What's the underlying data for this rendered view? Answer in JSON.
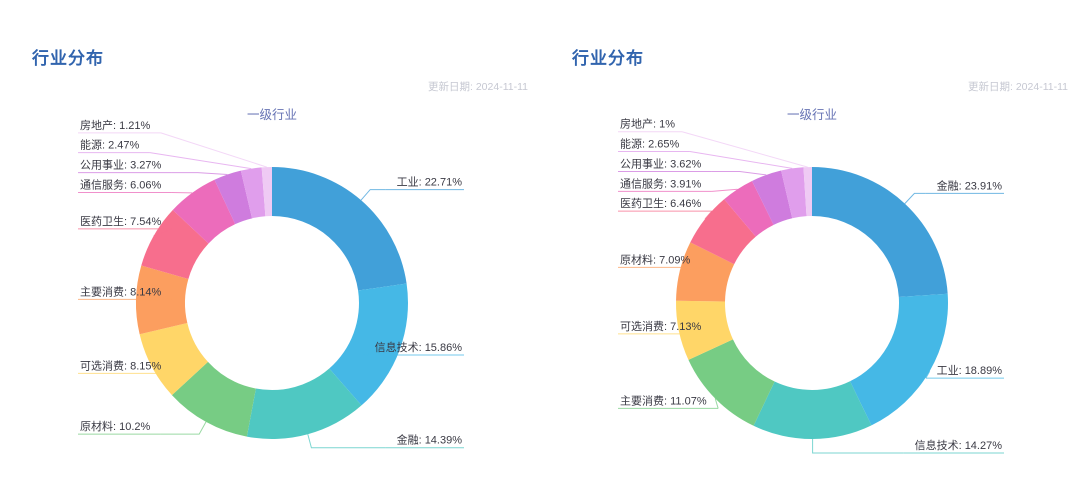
{
  "palette": [
    "#41A0D9",
    "#45B8E6",
    "#4FC8C2",
    "#77CC84",
    "#FFD668",
    "#FC9E5F",
    "#F76E8D",
    "#EC6CBB",
    "#CF7CDE",
    "#E09EEC",
    "#EFCAF4"
  ],
  "colors": {
    "title": "#3164AE",
    "subtitle": "#6673B4",
    "update_date": "#C6C8D2",
    "label_text": "#3A3A44",
    "background": "#FFFFFF"
  },
  "chart_data": [
    {
      "type": "pie",
      "donut": true,
      "title": "行业分布",
      "update_date": "更新日期: 2024-11-11",
      "subtitle": "一级行业",
      "unit": "%",
      "start_angle_deg": 90,
      "clockwise": true,
      "legend_position": "none",
      "categories": [
        "工业",
        "信息技术",
        "金融",
        "原材料",
        "可选消费",
        "主要消费",
        "医药卫生",
        "通信服务",
        "公用事业",
        "能源",
        "房地产"
      ],
      "values": [
        22.71,
        15.86,
        14.39,
        10.2,
        8.15,
        8.14,
        7.54,
        6.06,
        3.27,
        2.47,
        1.21
      ]
    },
    {
      "type": "pie",
      "donut": true,
      "title": "行业分布",
      "update_date": "更新日期: 2024-11-11",
      "subtitle": "一级行业",
      "unit": "%",
      "start_angle_deg": 90,
      "clockwise": true,
      "legend_position": "none",
      "categories": [
        "金融",
        "工业",
        "信息技术",
        "主要消费",
        "可选消费",
        "原材料",
        "医药卫生",
        "通信服务",
        "公用事业",
        "能源",
        "房地产"
      ],
      "values": [
        23.91,
        18.89,
        14.27,
        11.07,
        7.13,
        7.09,
        6.46,
        3.91,
        3.62,
        2.65,
        1
      ]
    }
  ]
}
